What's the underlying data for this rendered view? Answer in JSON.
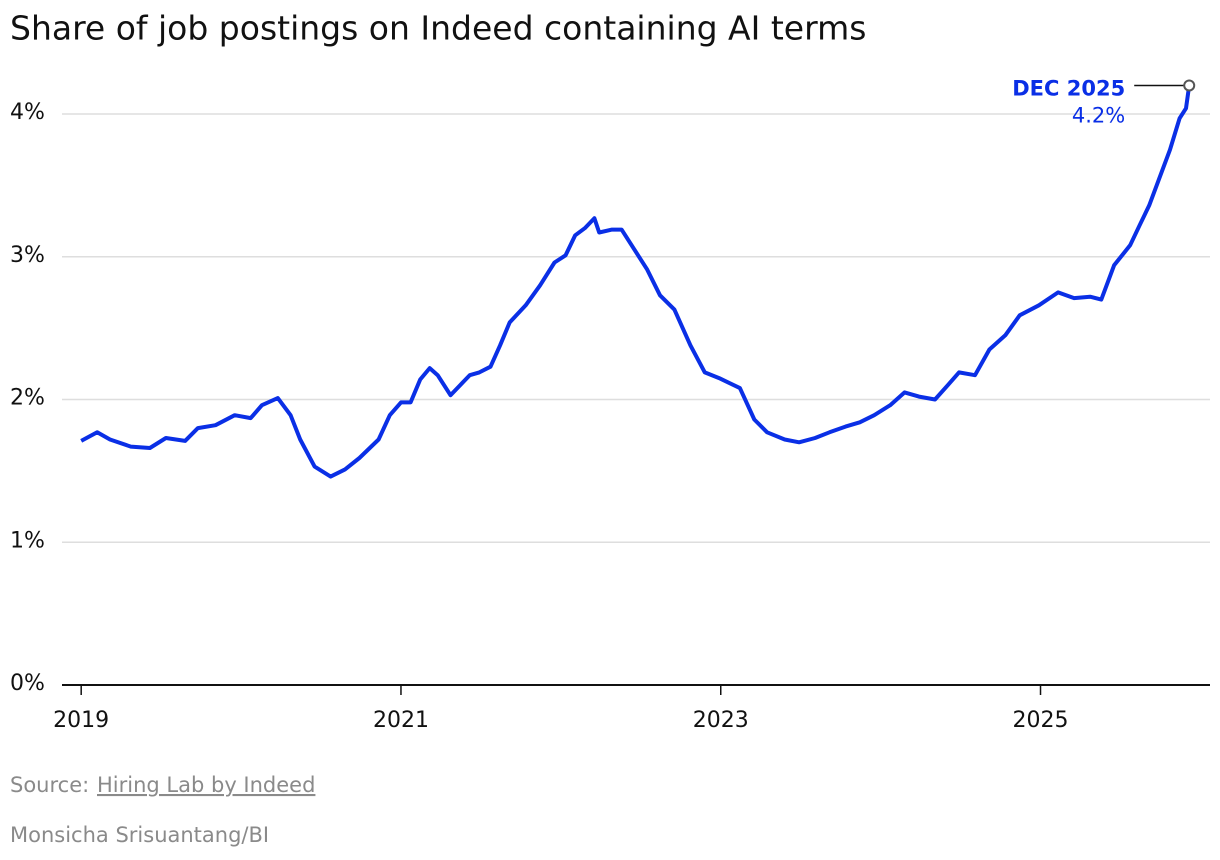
{
  "chart_data": {
    "type": "line",
    "title": "Share of job postings on Indeed containing AI terms",
    "x": [
      2019.0,
      2019.1,
      2019.18,
      2019.31,
      2019.43,
      2019.53,
      2019.65,
      2019.73,
      2019.84,
      2019.96,
      2020.06,
      2020.13,
      2020.23,
      2020.31,
      2020.37,
      2020.46,
      2020.56,
      2020.65,
      2020.74,
      2020.86,
      2020.93,
      2021.0,
      2021.06,
      2021.12,
      2021.18,
      2021.23,
      2021.31,
      2021.37,
      2021.43,
      2021.49,
      2021.56,
      2021.62,
      2021.68,
      2021.78,
      2021.87,
      2021.96,
      2022.03,
      2022.09,
      2022.15,
      2022.21,
      2022.24,
      2022.32,
      2022.38,
      2022.46,
      2022.54,
      2022.62,
      2022.71,
      2022.81,
      2022.9,
      2022.99,
      2023.12,
      2023.21,
      2023.29,
      2023.4,
      2023.49,
      2023.59,
      2023.68,
      2023.78,
      2023.87,
      2023.96,
      2024.06,
      2024.15,
      2024.24,
      2024.34,
      2024.42,
      2024.49,
      2024.59,
      2024.68,
      2024.78,
      2024.87,
      2024.99,
      2025.11,
      2025.21,
      2025.31,
      2025.38,
      2025.46,
      2025.56,
      2025.62,
      2025.68,
      2025.74,
      2025.81,
      2025.87,
      2025.91,
      2025.93
    ],
    "series": [
      {
        "name": "Share of job postings",
        "color": "#0a2fe6",
        "values": [
          1.71,
          1.77,
          1.72,
          1.67,
          1.66,
          1.73,
          1.71,
          1.8,
          1.82,
          1.89,
          1.87,
          1.96,
          2.01,
          1.89,
          1.72,
          1.53,
          1.46,
          1.51,
          1.59,
          1.72,
          1.89,
          1.98,
          1.98,
          2.14,
          2.22,
          2.17,
          2.03,
          2.1,
          2.17,
          2.19,
          2.23,
          2.38,
          2.54,
          2.66,
          2.8,
          2.96,
          3.01,
          3.15,
          3.2,
          3.27,
          3.17,
          3.19,
          3.19,
          3.05,
          2.91,
          2.73,
          2.63,
          2.38,
          2.19,
          2.15,
          2.08,
          1.86,
          1.77,
          1.72,
          1.7,
          1.73,
          1.77,
          1.81,
          1.84,
          1.89,
          1.96,
          2.05,
          2.02,
          2.0,
          2.1,
          2.19,
          2.17,
          2.35,
          2.45,
          2.59,
          2.66,
          2.75,
          2.71,
          2.72,
          2.7,
          2.94,
          3.08,
          3.22,
          3.36,
          3.54,
          3.75,
          3.97,
          4.04,
          4.2
        ]
      }
    ],
    "annotation": {
      "text": "DEC 2025",
      "value": 4.2,
      "value_label": "4.2%"
    },
    "xlim": [
      2018.88,
      2026.06
    ],
    "xticks": [
      2019,
      2021,
      2023,
      2025
    ],
    "ylim": [
      0,
      4.2
    ],
    "yticks": [
      {
        "value": 0,
        "label": "0%"
      },
      {
        "value": 1,
        "label": "1%"
      },
      {
        "value": 2,
        "label": "2%"
      },
      {
        "value": 3,
        "label": "3%"
      },
      {
        "value": 4,
        "label": "4%"
      }
    ],
    "grid": true
  },
  "source": {
    "prefix": "Source:",
    "link": "Hiring Lab by Indeed"
  },
  "credit": "Monsicha Srisuantang/BI"
}
